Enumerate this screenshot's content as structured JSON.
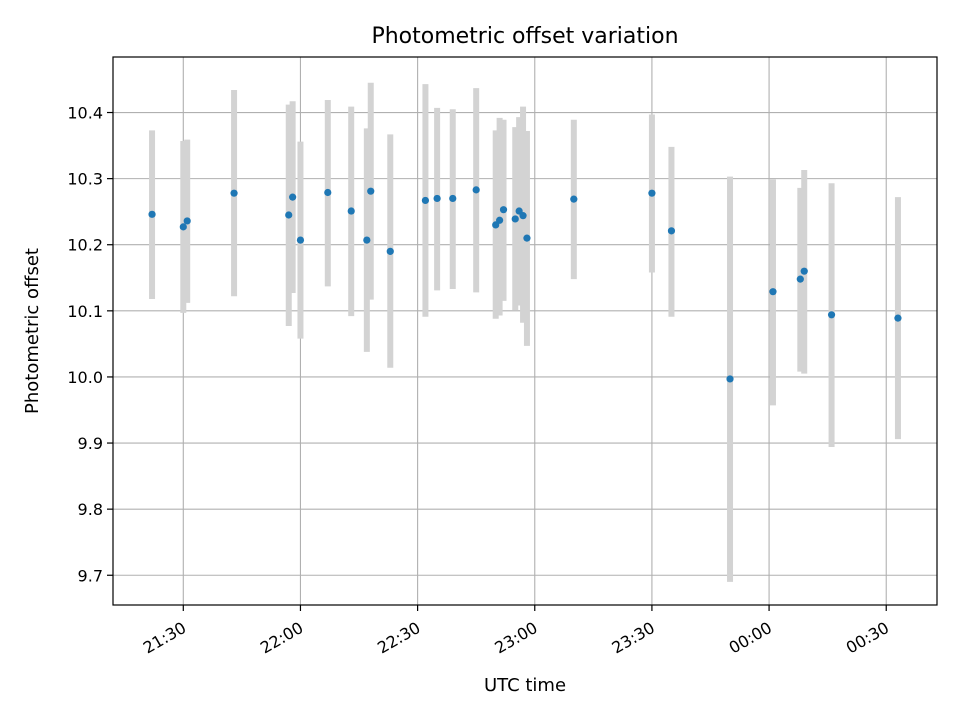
{
  "chart_data": {
    "type": "scatter",
    "title": "Photometric offset variation",
    "xlabel": "UTC time",
    "ylabel": "Photometric offset",
    "x_unit": "UTC clock time",
    "xlim": [
      "21:12",
      "00:43"
    ],
    "ylim": [
      9.655,
      10.484
    ],
    "x_ticks": [
      "21:30",
      "22:00",
      "22:30",
      "23:00",
      "23:30",
      "00:00",
      "00:30"
    ],
    "y_ticks": [
      9.7,
      9.8,
      9.9,
      10.0,
      10.1,
      10.2,
      10.3,
      10.4
    ],
    "y_tick_labels": [
      "9.7",
      "9.8",
      "9.9",
      "10.0",
      "10.1",
      "10.2",
      "10.3",
      "10.4"
    ],
    "x_tick_rotation": 30,
    "grid": true,
    "marker_color": "#1f77b4",
    "errorbar_color": "#d3d3d3",
    "points": [
      {
        "x": "21:22",
        "y": 10.246,
        "ylow": 10.118,
        "yhigh": 10.373
      },
      {
        "x": "21:30",
        "y": 10.227,
        "ylow": 10.097,
        "yhigh": 10.357
      },
      {
        "x": "21:31",
        "y": 10.236,
        "ylow": 10.112,
        "yhigh": 10.359
      },
      {
        "x": "21:43",
        "y": 10.278,
        "ylow": 10.122,
        "yhigh": 10.434
      },
      {
        "x": "21:57",
        "y": 10.245,
        "ylow": 10.077,
        "yhigh": 10.412
      },
      {
        "x": "21:58",
        "y": 10.272,
        "ylow": 10.127,
        "yhigh": 10.417
      },
      {
        "x": "22:00",
        "y": 10.207,
        "ylow": 10.058,
        "yhigh": 10.356
      },
      {
        "x": "22:07",
        "y": 10.279,
        "ylow": 10.137,
        "yhigh": 10.419
      },
      {
        "x": "22:13",
        "y": 10.251,
        "ylow": 10.092,
        "yhigh": 10.409
      },
      {
        "x": "22:17",
        "y": 10.207,
        "ylow": 10.038,
        "yhigh": 10.376
      },
      {
        "x": "22:18",
        "y": 10.281,
        "ylow": 10.117,
        "yhigh": 10.445
      },
      {
        "x": "22:23",
        "y": 10.19,
        "ylow": 10.014,
        "yhigh": 10.367
      },
      {
        "x": "22:32",
        "y": 10.267,
        "ylow": 10.091,
        "yhigh": 10.443
      },
      {
        "x": "22:35",
        "y": 10.27,
        "ylow": 10.131,
        "yhigh": 10.407
      },
      {
        "x": "22:39",
        "y": 10.27,
        "ylow": 10.133,
        "yhigh": 10.405
      },
      {
        "x": "22:45",
        "y": 10.283,
        "ylow": 10.128,
        "yhigh": 10.437
      },
      {
        "x": "22:50",
        "y": 10.23,
        "ylow": 10.088,
        "yhigh": 10.373
      },
      {
        "x": "22:51",
        "y": 10.237,
        "ylow": 10.093,
        "yhigh": 10.392
      },
      {
        "x": "22:52",
        "y": 10.253,
        "ylow": 10.115,
        "yhigh": 10.389
      },
      {
        "x": "22:55",
        "y": 10.239,
        "ylow": 10.101,
        "yhigh": 10.378
      },
      {
        "x": "22:56",
        "y": 10.251,
        "ylow": 10.108,
        "yhigh": 10.393
      },
      {
        "x": "22:57",
        "y": 10.244,
        "ylow": 10.082,
        "yhigh": 10.409
      },
      {
        "x": "22:58",
        "y": 10.21,
        "ylow": 10.047,
        "yhigh": 10.372
      },
      {
        "x": "23:10",
        "y": 10.269,
        "ylow": 10.148,
        "yhigh": 10.389
      },
      {
        "x": "23:30",
        "y": 10.278,
        "ylow": 10.158,
        "yhigh": 10.397
      },
      {
        "x": "23:35",
        "y": 10.221,
        "ylow": 10.091,
        "yhigh": 10.348
      },
      {
        "x": "23:50",
        "y": 9.997,
        "ylow": 9.69,
        "yhigh": 10.303
      },
      {
        "x": "00:01",
        "y": 10.129,
        "ylow": 9.957,
        "yhigh": 10.299
      },
      {
        "x": "00:08",
        "y": 10.148,
        "ylow": 10.008,
        "yhigh": 10.286
      },
      {
        "x": "00:09",
        "y": 10.16,
        "ylow": 10.005,
        "yhigh": 10.313
      },
      {
        "x": "00:16",
        "y": 10.094,
        "ylow": 9.894,
        "yhigh": 10.293
      },
      {
        "x": "00:33",
        "y": 10.089,
        "ylow": 9.906,
        "yhigh": 10.272
      }
    ]
  }
}
